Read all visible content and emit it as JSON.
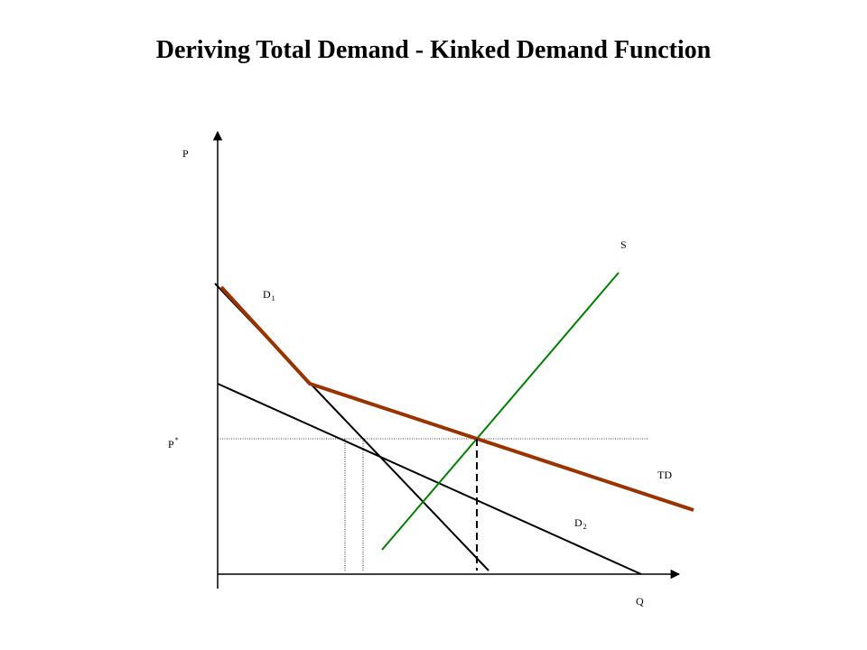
{
  "title": "Deriving Total Demand - Kinked Demand Function",
  "labels": {
    "price_axis": "P",
    "quantity_axis": "Q",
    "equilibrium_price": "P",
    "equilibrium_price_sup": "*",
    "supply": "S",
    "total_demand": "TD",
    "demand_1": "D",
    "demand_1_sub": "1",
    "demand_2": "D",
    "demand_2_sub": "2"
  },
  "colors": {
    "axes": "#000000",
    "demand_lines": "#000000",
    "total_demand": "#993300",
    "supply": "#008000",
    "guides": "#000000"
  }
}
